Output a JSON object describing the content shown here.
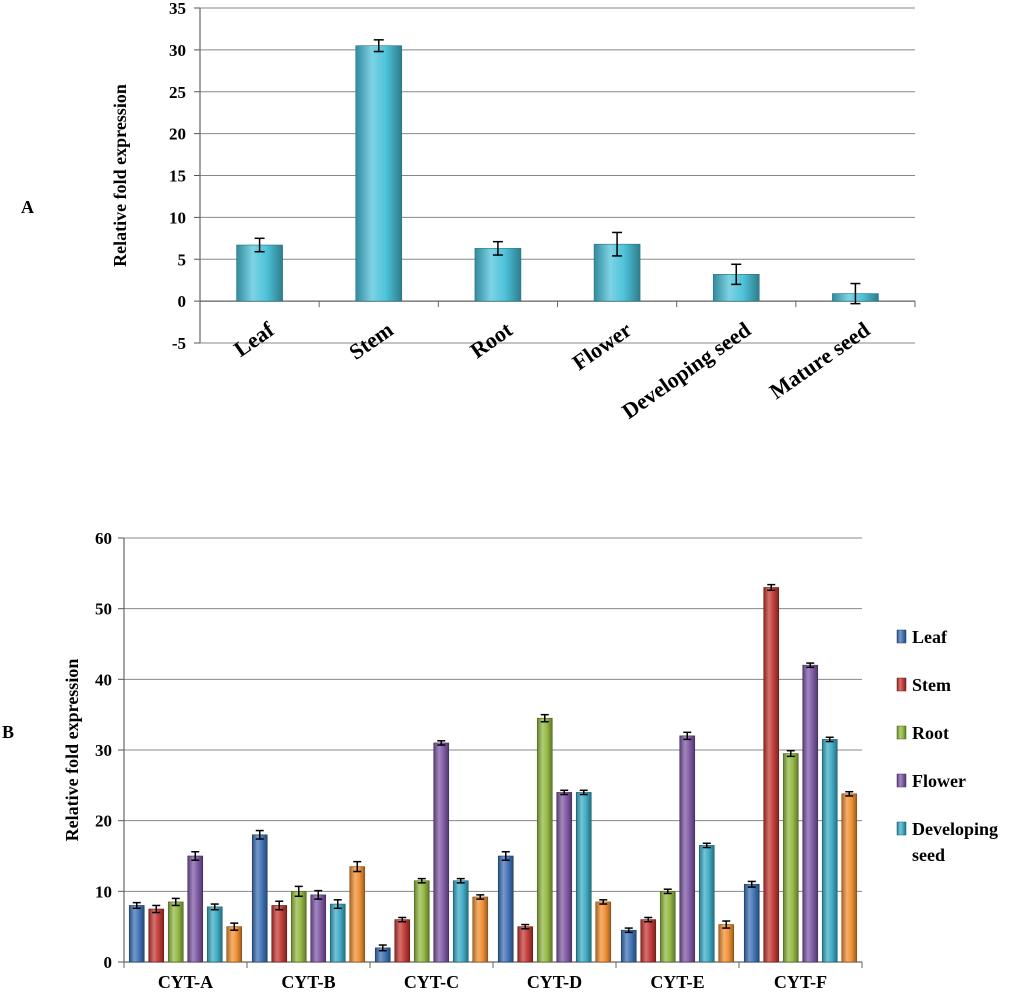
{
  "chart_data": [
    {
      "panel_label": "A",
      "type": "bar",
      "ylabel": "Relative fold expression",
      "ylim": [
        -5,
        35
      ],
      "yticks": [
        35,
        30,
        25,
        20,
        15,
        10,
        5,
        0,
        -5
      ],
      "grid": true,
      "categories": [
        "Leaf",
        "Stem",
        "Root",
        "Flower",
        "Developing seed",
        "Mature seed"
      ],
      "values": [
        6.7,
        30.5,
        6.3,
        6.8,
        3.2,
        0.9
      ],
      "errors": [
        0.8,
        0.7,
        0.8,
        1.4,
        1.2,
        1.2
      ],
      "color": "#45c0d8"
    },
    {
      "panel_label": "B",
      "type": "bar",
      "ylabel": "Relative fold expression",
      "ylim": [
        0,
        60
      ],
      "yticks": [
        60,
        50,
        40,
        30,
        20,
        10,
        0
      ],
      "grid": true,
      "legend_position": "right",
      "categories": [
        "CYT-A",
        "CYT-B",
        "CYT-C",
        "CYT-D",
        "CYT-E",
        "CYT-F"
      ],
      "series": [
        {
          "name": "Leaf",
          "color": "#3a6fb5",
          "values": [
            8,
            18,
            2,
            15,
            4.5,
            11
          ],
          "errors": [
            0.4,
            0.6,
            0.4,
            0.6,
            0.3,
            0.4
          ]
        },
        {
          "name": "Stem",
          "color": "#c23531",
          "values": [
            7.5,
            8,
            6,
            5,
            6,
            53
          ],
          "errors": [
            0.5,
            0.6,
            0.3,
            0.3,
            0.3,
            0.4
          ]
        },
        {
          "name": "Root",
          "color": "#8fb63d",
          "values": [
            8.5,
            10,
            11.5,
            34.5,
            10,
            29.5
          ],
          "errors": [
            0.5,
            0.7,
            0.3,
            0.5,
            0.3,
            0.4
          ]
        },
        {
          "name": "Flower",
          "color": "#7b55a3",
          "values": [
            15,
            9.5,
            31,
            24,
            32,
            42
          ],
          "errors": [
            0.6,
            0.6,
            0.3,
            0.3,
            0.5,
            0.3
          ]
        },
        {
          "name": "Developing seed",
          "legend_lines": [
            "Developing",
            "seed"
          ],
          "color": "#38a9c4",
          "values": [
            7.8,
            8.2,
            11.5,
            24,
            16.5,
            31.5
          ],
          "errors": [
            0.4,
            0.6,
            0.3,
            0.3,
            0.3,
            0.3
          ]
        },
        {
          "name": "",
          "color": "#f08d2e",
          "values": [
            5,
            13.5,
            9.2,
            8.5,
            5.3,
            23.8
          ],
          "errors": [
            0.5,
            0.7,
            0.3,
            0.3,
            0.5,
            0.3
          ]
        }
      ]
    }
  ]
}
